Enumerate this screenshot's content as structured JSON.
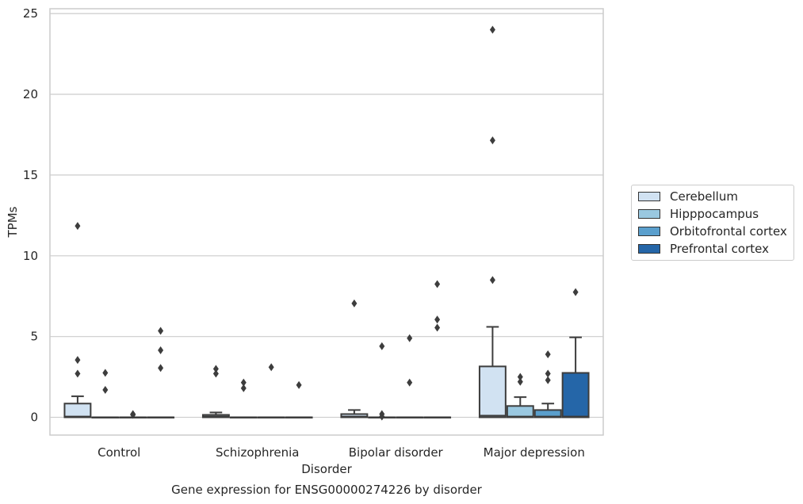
{
  "chart_data": {
    "type": "box",
    "title": "Gene expression for ENSG00000274226 by disorder",
    "xlabel": "Disorder",
    "ylabel": "TPMs",
    "ylim": [
      -1.1,
      25.3
    ],
    "yticks": [
      0,
      5,
      10,
      15,
      20,
      25
    ],
    "grid": true,
    "legend_position": "right",
    "categories": [
      "Control",
      "Schizophrenia",
      "Bipolar disorder",
      "Major depression"
    ],
    "series": [
      {
        "name": "Cerebellum",
        "color": "#d1e2f2",
        "boxes": [
          {
            "q1": 0,
            "median": 0.05,
            "q3": 0.85,
            "whisker_high": 1.3,
            "outliers": [
              11.85,
              3.55,
              2.7
            ]
          },
          {
            "q1": 0,
            "median": 0.05,
            "q3": 0.15,
            "whisker_high": 0.3,
            "outliers": [
              3.0,
              2.7
            ]
          },
          {
            "q1": 0,
            "median": 0.05,
            "q3": 0.2,
            "whisker_high": 0.45,
            "outliers": [
              7.05
            ]
          },
          {
            "q1": 0,
            "median": 0.1,
            "q3": 3.15,
            "whisker_high": 5.6,
            "outliers": [
              24.0,
              17.15,
              8.5
            ]
          }
        ]
      },
      {
        "name": "Hipppocampus",
        "color": "#9ac8e0",
        "boxes": [
          {
            "q1": 0,
            "median": 0,
            "q3": 0,
            "whisker_high": 0,
            "outliers": [
              2.75,
              1.7
            ]
          },
          {
            "q1": 0,
            "median": 0,
            "q3": 0,
            "whisker_high": 0,
            "outliers": [
              2.15,
              1.8
            ]
          },
          {
            "q1": 0,
            "median": 0,
            "q3": 0,
            "whisker_high": 0,
            "outliers": [
              4.4,
              0.2,
              0.05
            ]
          },
          {
            "q1": 0,
            "median": 0.05,
            "q3": 0.7,
            "whisker_high": 1.25,
            "outliers": [
              2.5,
              2.2
            ]
          }
        ]
      },
      {
        "name": "Orbitofrontal cortex",
        "color": "#5a9fcd",
        "boxes": [
          {
            "q1": 0,
            "median": 0,
            "q3": 0,
            "whisker_high": 0,
            "outliers": [
              0.2,
              0.15
            ]
          },
          {
            "q1": 0,
            "median": 0,
            "q3": 0,
            "whisker_high": 0,
            "outliers": [
              3.1
            ]
          },
          {
            "q1": 0,
            "median": 0,
            "q3": 0,
            "whisker_high": 0,
            "outliers": [
              4.9,
              2.15
            ]
          },
          {
            "q1": 0,
            "median": 0.05,
            "q3": 0.45,
            "whisker_high": 0.85,
            "outliers": [
              3.9,
              2.7,
              2.3
            ]
          }
        ]
      },
      {
        "name": "Prefrontal cortex",
        "color": "#2566a8",
        "boxes": [
          {
            "q1": 0,
            "median": 0,
            "q3": 0,
            "whisker_high": 0,
            "outliers": [
              5.35,
              4.15,
              3.05
            ]
          },
          {
            "q1": 0,
            "median": 0,
            "q3": 0,
            "whisker_high": 0,
            "outliers": [
              2.0
            ]
          },
          {
            "q1": 0,
            "median": 0,
            "q3": 0,
            "whisker_high": 0,
            "outliers": [
              8.25,
              6.05,
              5.55
            ]
          },
          {
            "q1": 0,
            "median": 0.05,
            "q3": 2.75,
            "whisker_high": 4.95,
            "outliers": [
              7.75
            ]
          }
        ]
      }
    ]
  }
}
